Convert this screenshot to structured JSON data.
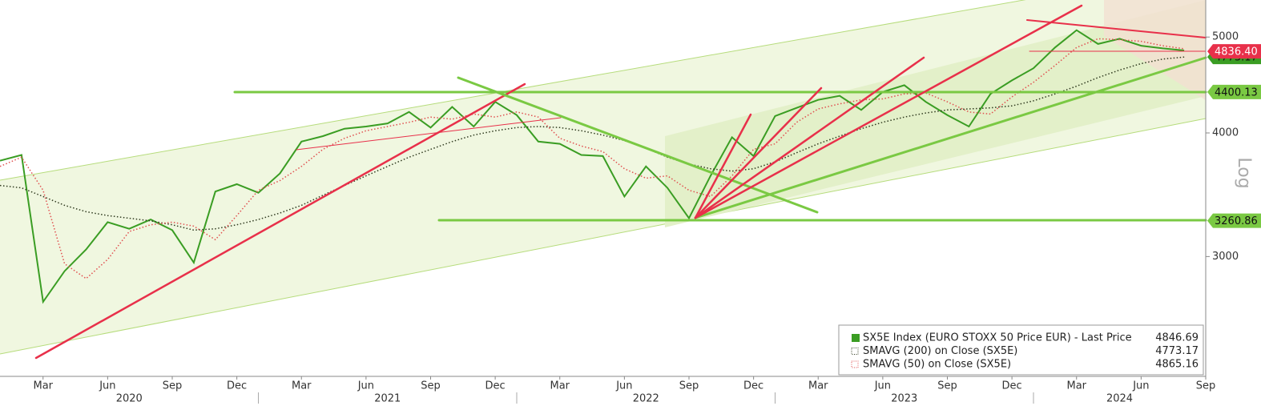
{
  "chart_data": {
    "type": "line",
    "y_axis_label": "Log",
    "log_scale": true,
    "x": [
      "2020-01",
      "2020-02",
      "2020-03",
      "2020-04",
      "2020-05",
      "2020-06",
      "2020-07",
      "2020-08",
      "2020-09",
      "2020-10",
      "2020-11",
      "2020-12",
      "2021-01",
      "2021-02",
      "2021-03",
      "2021-04",
      "2021-05",
      "2021-06",
      "2021-07",
      "2021-08",
      "2021-09",
      "2021-10",
      "2021-11",
      "2021-12",
      "2022-01",
      "2022-02",
      "2022-03",
      "2022-04",
      "2022-05",
      "2022-06",
      "2022-07",
      "2022-08",
      "2022-09",
      "2022-10",
      "2022-11",
      "2022-12",
      "2023-01",
      "2023-02",
      "2023-03",
      "2023-04",
      "2023-05",
      "2023-06",
      "2023-07",
      "2023-08",
      "2023-09",
      "2023-10",
      "2023-11",
      "2023-12",
      "2024-01",
      "2024-02",
      "2024-03",
      "2024-04",
      "2024-05",
      "2024-06",
      "2024-07",
      "2024-08"
    ],
    "series": [
      {
        "name": "SX5E Index (EURO STOXX 50 Price EUR) - Last Price",
        "color": "#3a9d23",
        "style": "solid",
        "last_value": 4846.69,
        "values": [
          3750,
          3800,
          2700,
          2900,
          3050,
          3250,
          3200,
          3270,
          3190,
          2958,
          3490,
          3550,
          3480,
          3640,
          3920,
          3970,
          4040,
          4060,
          4090,
          4200,
          4050,
          4250,
          4060,
          4300,
          4170,
          3920,
          3900,
          3800,
          3790,
          3450,
          3700,
          3520,
          3280,
          3620,
          3960,
          3790,
          4160,
          4240,
          4320,
          4360,
          4220,
          4400,
          4470,
          4300,
          4170,
          4060,
          4380,
          4520,
          4650,
          4880,
          5080,
          4920,
          4980,
          4900,
          4870,
          4846.69
        ]
      },
      {
        "name": "SMAVG (200)  on Close (SX5E)",
        "color": "#2f3a1f",
        "style": "dotted",
        "last_value": 4773.17,
        "values": [
          3540,
          3520,
          3450,
          3380,
          3330,
          3300,
          3280,
          3260,
          3230,
          3190,
          3200,
          3230,
          3270,
          3320,
          3380,
          3460,
          3540,
          3620,
          3700,
          3780,
          3850,
          3920,
          3980,
          4020,
          4050,
          4060,
          4050,
          4020,
          3980,
          3930,
          3860,
          3780,
          3720,
          3680,
          3660,
          3680,
          3740,
          3820,
          3900,
          3970,
          4040,
          4100,
          4150,
          4190,
          4220,
          4230,
          4240,
          4260,
          4310,
          4380,
          4460,
          4550,
          4630,
          4700,
          4750,
          4773.17
        ]
      },
      {
        "name": "SMAVG (50)  on Close (SX5E)",
        "color": "#e05050",
        "style": "dotted",
        "last_value": 4865.16,
        "values": [
          3700,
          3780,
          3500,
          2950,
          2850,
          2980,
          3180,
          3230,
          3250,
          3220,
          3120,
          3300,
          3500,
          3580,
          3700,
          3850,
          3950,
          4020,
          4060,
          4100,
          4150,
          4130,
          4180,
          4150,
          4200,
          4150,
          3950,
          3880,
          3830,
          3680,
          3600,
          3620,
          3500,
          3450,
          3620,
          3850,
          3900,
          4100,
          4230,
          4280,
          4320,
          4330,
          4380,
          4390,
          4300,
          4200,
          4180,
          4350,
          4500,
          4680,
          4880,
          4980,
          4970,
          4950,
          4900,
          4865.16
        ]
      }
    ],
    "xlim": [
      "2020-01",
      "2024-09"
    ],
    "xticks": [
      {
        "value": "2020-03",
        "label": "Mar"
      },
      {
        "value": "2020-06",
        "label": "Jun"
      },
      {
        "value": "2020-09",
        "label": "Sep"
      },
      {
        "value": "2020-12",
        "label": "Dec"
      },
      {
        "value": "2021-03",
        "label": "Mar"
      },
      {
        "value": "2021-06",
        "label": "Jun"
      },
      {
        "value": "2021-09",
        "label": "Sep"
      },
      {
        "value": "2021-12",
        "label": "Dec"
      },
      {
        "value": "2022-03",
        "label": "Mar"
      },
      {
        "value": "2022-06",
        "label": "Jun"
      },
      {
        "value": "2022-09",
        "label": "Sep"
      },
      {
        "value": "2022-12",
        "label": "Dec"
      },
      {
        "value": "2023-03",
        "label": "Mar"
      },
      {
        "value": "2023-06",
        "label": "Jun"
      },
      {
        "value": "2023-09",
        "label": "Sep"
      },
      {
        "value": "2023-12",
        "label": "Dec"
      },
      {
        "value": "2024-03",
        "label": "Mar"
      },
      {
        "value": "2024-06",
        "label": "Jun"
      },
      {
        "value": "2024-09",
        "label": "Sep"
      }
    ],
    "years": [
      "2020",
      "2021",
      "2022",
      "2023",
      "2024"
    ],
    "ylim": [
      2270,
      5450
    ],
    "yticks": [
      3000,
      4000,
      5000
    ],
    "axis_markers": [
      {
        "value": 4773.17,
        "color": "#3a9d23"
      },
      {
        "value": 4836.4,
        "label": "4836.40",
        "color": "#e8304a"
      },
      {
        "value": 4400.13,
        "color": "#7ac943"
      },
      {
        "value": 3260.86,
        "color": "#7ac943"
      }
    ]
  }
}
